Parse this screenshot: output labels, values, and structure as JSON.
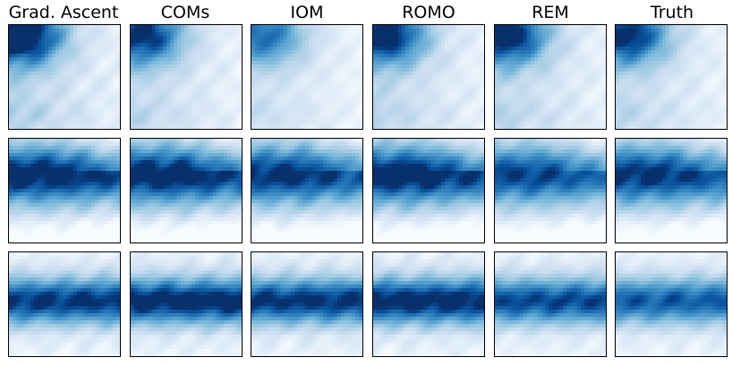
{
  "chart_data": {
    "type": "heatmap",
    "colormap": "Blues",
    "columns": [
      "Grad. Ascent",
      "COMs",
      "IOM",
      "ROMO",
      "REM",
      "Truth"
    ],
    "rows": 3,
    "panels": [
      [
        {
          "pattern": "corner",
          "strength": 1.0
        },
        {
          "pattern": "corner",
          "strength": 0.85
        },
        {
          "pattern": "corner",
          "strength": 0.7
        },
        {
          "pattern": "corner",
          "strength": 0.9
        },
        {
          "pattern": "corner",
          "strength": 0.9
        },
        {
          "pattern": "corner",
          "strength": 0.85
        }
      ],
      [
        {
          "pattern": "upper-band",
          "strength": 1.0
        },
        {
          "pattern": "upper-band",
          "strength": 1.0
        },
        {
          "pattern": "upper-band",
          "strength": 0.95
        },
        {
          "pattern": "upper-band",
          "strength": 1.0
        },
        {
          "pattern": "upper-band",
          "strength": 0.9
        },
        {
          "pattern": "upper-band",
          "strength": 0.95
        }
      ],
      [
        {
          "pattern": "middle-band",
          "strength": 0.95
        },
        {
          "pattern": "middle-band",
          "strength": 1.0
        },
        {
          "pattern": "middle-band",
          "strength": 0.95
        },
        {
          "pattern": "middle-band",
          "strength": 1.0
        },
        {
          "pattern": "middle-band",
          "strength": 0.9
        },
        {
          "pattern": "middle-band",
          "strength": 0.85
        }
      ]
    ]
  }
}
